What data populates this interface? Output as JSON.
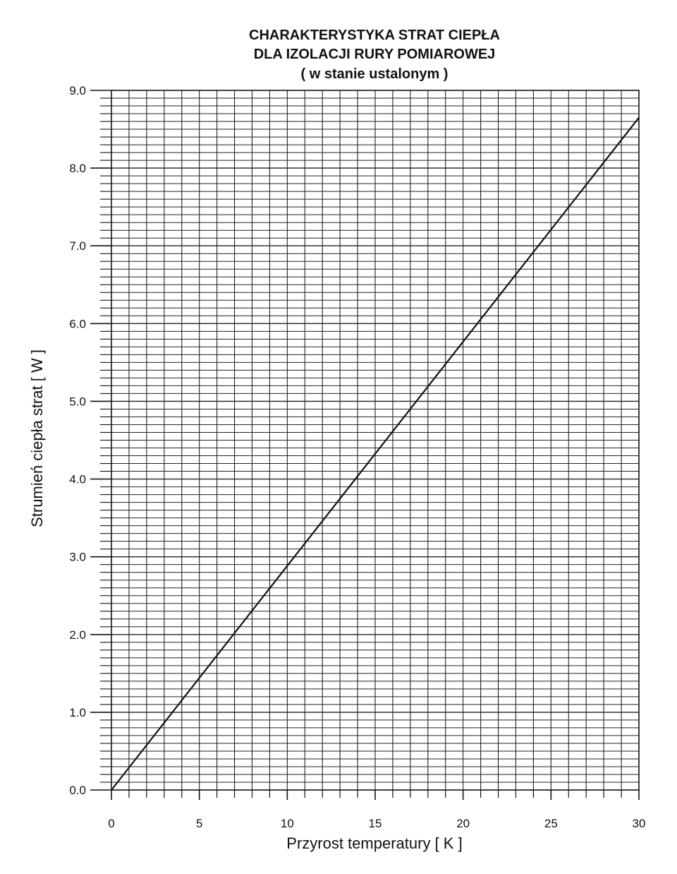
{
  "chart_data": {
    "type": "line",
    "title": [
      "CHARAKTERYSTYKA STRAT CIEPŁA",
      "DLA IZOLACJI RURY POMIAROWEJ",
      "( w stanie ustalonym  )"
    ],
    "xlabel": "Przyrost temperatury   [ K ]",
    "ylabel": "Strumień ciepła strat   [ W ]",
    "xlim": [
      0,
      30
    ],
    "ylim": [
      0.0,
      9.0
    ],
    "x_ticks": [
      0,
      5,
      10,
      15,
      20,
      25,
      30
    ],
    "x_tick_labels": [
      "0",
      "5",
      "10",
      "15",
      "20",
      "25",
      "30"
    ],
    "y_ticks": [
      0.0,
      1.0,
      2.0,
      3.0,
      4.0,
      5.0,
      6.0,
      7.0,
      8.0,
      9.0
    ],
    "y_tick_labels": [
      "0.0",
      "1.0",
      "2.0",
      "3.0",
      "4.0",
      "5.0",
      "6.0",
      "7.0",
      "8.0",
      "9.0"
    ],
    "x_minor_step": 1,
    "y_minor_step": 0.1,
    "grid": true,
    "series": [
      {
        "x": [
          0,
          30
        ],
        "y": [
          0.0,
          8.65
        ]
      }
    ]
  },
  "colors": {
    "line": "#111111",
    "grid": "#222222",
    "background": "#ffffff"
  }
}
